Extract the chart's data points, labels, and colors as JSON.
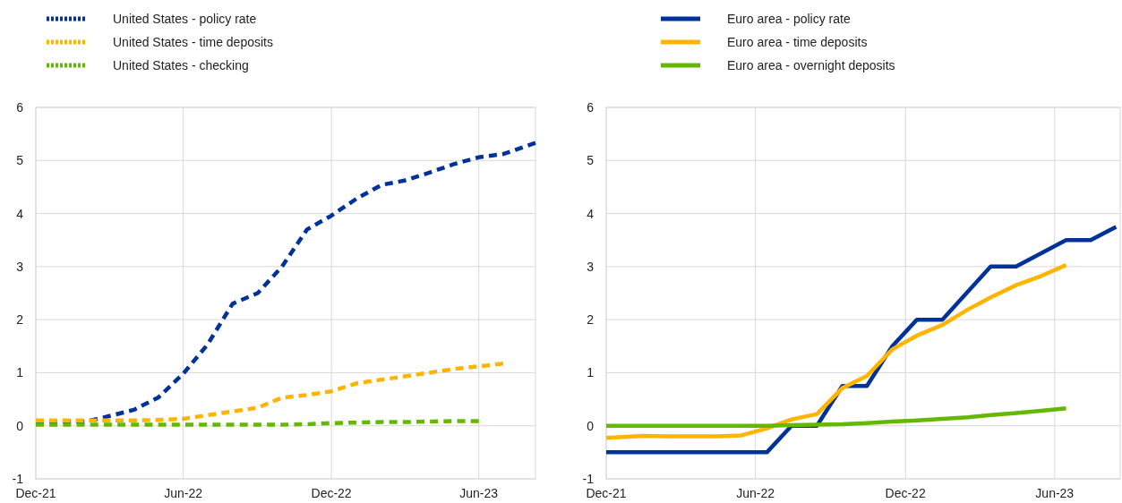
{
  "chart_data": [
    {
      "type": "line",
      "legend": "top",
      "grid": true,
      "line_style": "dashed",
      "xlim": [
        "2021-12",
        "2023-08-10"
      ],
      "ylim": [
        -1,
        6
      ],
      "yticks": [
        -1,
        0,
        1,
        2,
        3,
        4,
        5,
        6
      ],
      "xticks": [
        {
          "value": "2021-12",
          "label": "Dec-21"
        },
        {
          "value": "2022-06",
          "label": "Jun-22"
        },
        {
          "value": "2022-12",
          "label": "Dec-22"
        },
        {
          "value": "2023-06",
          "label": "Jun-23"
        }
      ],
      "series": [
        {
          "name": "United States - policy rate",
          "color": "#003299",
          "x": [
            "2021-12",
            "2022-01",
            "2022-02",
            "2022-03",
            "2022-04",
            "2022-05",
            "2022-06",
            "2022-07",
            "2022-08",
            "2022-09",
            "2022-10",
            "2022-11",
            "2022-12",
            "2023-01",
            "2023-02",
            "2023-03",
            "2023-04",
            "2023-05",
            "2023-06",
            "2023-07",
            "2023-08-10"
          ],
          "values": [
            0.08,
            0.08,
            0.08,
            0.18,
            0.3,
            0.53,
            0.98,
            1.53,
            2.3,
            2.5,
            3.0,
            3.7,
            3.96,
            4.28,
            4.54,
            4.62,
            4.77,
            4.93,
            5.06,
            5.12,
            5.33
          ]
        },
        {
          "name": "United States - time deposits",
          "color": "#ffb400",
          "x": [
            "2021-12",
            "2022-01",
            "2022-02",
            "2022-03",
            "2022-04",
            "2022-05",
            "2022-06",
            "2022-07",
            "2022-08",
            "2022-09",
            "2022-10",
            "2022-11",
            "2022-12",
            "2023-01",
            "2023-02",
            "2023-03",
            "2023-04",
            "2023-05",
            "2023-06",
            "2023-07"
          ],
          "values": [
            0.1,
            0.1,
            0.1,
            0.1,
            0.1,
            0.11,
            0.13,
            0.2,
            0.27,
            0.34,
            0.53,
            0.58,
            0.65,
            0.8,
            0.87,
            0.93,
            1.0,
            1.07,
            1.12,
            1.17
          ]
        },
        {
          "name": "United States - checking",
          "color": "#65b800",
          "x": [
            "2021-12",
            "2022-01",
            "2022-02",
            "2022-03",
            "2022-04",
            "2022-05",
            "2022-06",
            "2022-07",
            "2022-08",
            "2022-09",
            "2022-10",
            "2022-11",
            "2022-12",
            "2023-01",
            "2023-02",
            "2023-03",
            "2023-04",
            "2023-05",
            "2023-06"
          ],
          "values": [
            0.02,
            0.02,
            0.02,
            0.02,
            0.02,
            0.02,
            0.02,
            0.02,
            0.02,
            0.02,
            0.02,
            0.03,
            0.05,
            0.06,
            0.07,
            0.07,
            0.08,
            0.09,
            0.09
          ]
        }
      ]
    },
    {
      "type": "line",
      "legend": "top",
      "grid": true,
      "line_style": "solid",
      "xlim": [
        "2021-12",
        "2023-08-20"
      ],
      "ylim": [
        -1,
        6
      ],
      "yticks": [
        -1,
        0,
        1,
        2,
        3,
        4,
        5,
        6
      ],
      "xticks": [
        {
          "value": "2021-12",
          "label": "Dec-21"
        },
        {
          "value": "2022-06",
          "label": "Jun-22"
        },
        {
          "value": "2022-12",
          "label": "Dec-22"
        },
        {
          "value": "2023-06",
          "label": "Jun-23"
        }
      ],
      "series": [
        {
          "name": "Euro area - policy rate",
          "color": "#003299",
          "x": [
            "2021-12",
            "2022-06-15",
            "2022-07-15",
            "2022-08-15",
            "2022-09-15",
            "2022-10-15",
            "2022-11-15",
            "2022-12-15",
            "2023-01-15",
            "2023-03-15",
            "2023-04-15",
            "2023-06-15",
            "2023-07-15",
            "2023-08-15"
          ],
          "values": [
            -0.5,
            -0.5,
            0,
            0,
            0.75,
            0.75,
            1.5,
            2,
            2,
            3,
            3,
            3.5,
            3.5,
            3.75
          ]
        },
        {
          "name": "Euro area - time deposits",
          "color": "#ffb400",
          "x": [
            "2021-12",
            "2022-01-15",
            "2022-02-15",
            "2022-03-15",
            "2022-04-15",
            "2022-05-15",
            "2022-06-15",
            "2022-07-15",
            "2022-08-15",
            "2022-09-15",
            "2022-10-15",
            "2022-11-15",
            "2022-12-15",
            "2023-01-15",
            "2023-02-15",
            "2023-03-15",
            "2023-04-15",
            "2023-05-15",
            "2023-06-15"
          ],
          "values": [
            -0.23,
            -0.19,
            -0.2,
            -0.2,
            -0.2,
            -0.18,
            -0.05,
            0.12,
            0.22,
            0.71,
            0.94,
            1.44,
            1.7,
            1.9,
            2.19,
            2.42,
            2.65,
            2.82,
            3.03
          ]
        },
        {
          "name": "Euro area - overnight deposits",
          "color": "#65b800",
          "x": [
            "2021-12",
            "2022-01-15",
            "2022-02-15",
            "2022-03-15",
            "2022-04-15",
            "2022-05-15",
            "2022-06-15",
            "2022-07-15",
            "2022-08-15",
            "2022-09-15",
            "2022-10-15",
            "2022-11-15",
            "2022-12-15",
            "2023-01-15",
            "2023-02-15",
            "2023-03-15",
            "2023-04-15",
            "2023-05-15",
            "2023-06-15"
          ],
          "values": [
            0,
            0,
            0,
            0,
            0,
            0,
            0,
            0.01,
            0.02,
            0.03,
            0.05,
            0.08,
            0.1,
            0.13,
            0.16,
            0.2,
            0.24,
            0.28,
            0.33
          ]
        }
      ]
    }
  ]
}
